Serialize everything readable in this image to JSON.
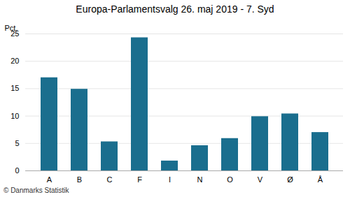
{
  "chart_data": {
    "type": "bar",
    "title": "Europa-Parlamentsvalg 26. maj 2019 - 7. Syd",
    "categories": [
      "A",
      "B",
      "C",
      "F",
      "I",
      "N",
      "O",
      "V",
      "Ø",
      "Å"
    ],
    "values": [
      17.0,
      14.9,
      5.3,
      24.3,
      1.8,
      4.6,
      5.9,
      9.9,
      10.4,
      7.0
    ],
    "color": "#1a6e8e",
    "ylabel": "Pct.",
    "ylim": [
      0,
      25
    ],
    "yticks": [
      0,
      5,
      10,
      15,
      20,
      25
    ],
    "grid": true,
    "caption": "© Danmarks Statistik"
  }
}
